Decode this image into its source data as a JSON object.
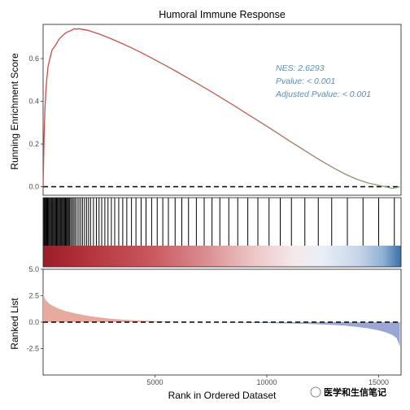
{
  "chart_data": {
    "type": "line",
    "title": "Humoral Immune Response",
    "xlabel": "Rank in Ordered Dataset",
    "xlim": [
      0,
      16000
    ],
    "x_ticks": [
      5000,
      10000,
      15000
    ],
    "x_tick_labels": [
      "5000",
      "10000",
      "15000"
    ],
    "panels": [
      {
        "name": "running-enrichment",
        "ylabel": "Running Enrichment Score",
        "ylim": [
          -0.04,
          0.76
        ],
        "y_ticks": [
          0.0,
          0.2,
          0.4,
          0.6
        ],
        "y_tick_labels": [
          "0.0",
          "0.2",
          "0.4",
          "0.6"
        ],
        "reference_line_y": 0,
        "series": [
          {
            "x": [
              0,
              40,
              80,
              120,
              160,
              220,
              300,
              400,
              500,
              600,
              700,
              800,
              900,
              1000,
              1100,
              1200,
              1300,
              1400,
              1500,
              1600,
              1800,
              2000,
              2500,
              3000,
              3500,
              4000,
              4500,
              5000,
              5500,
              6000,
              6500,
              7000,
              7500,
              8000,
              8500,
              9000,
              9500,
              10000,
              10500,
              11000,
              11500,
              12000,
              12500,
              13000,
              13500,
              14000,
              14500,
              15000,
              15300,
              15600,
              15800,
              15950
            ],
            "y": [
              0.0,
              0.22,
              0.36,
              0.44,
              0.5,
              0.56,
              0.6,
              0.64,
              0.655,
              0.67,
              0.69,
              0.7,
              0.71,
              0.72,
              0.725,
              0.73,
              0.735,
              0.74,
              0.738,
              0.74,
              0.736,
              0.732,
              0.715,
              0.695,
              0.672,
              0.648,
              0.622,
              0.594,
              0.566,
              0.537,
              0.507,
              0.477,
              0.446,
              0.414,
              0.382,
              0.349,
              0.316,
              0.283,
              0.249,
              0.215,
              0.182,
              0.149,
              0.117,
              0.087,
              0.059,
              0.036,
              0.018,
              0.006,
              0.0,
              -0.008,
              -0.004,
              0.0
            ]
          }
        ],
        "annotations": [
          "NES: 2.6293",
          "Pvalue: < 0.001",
          "Adjusted Pvalue: < 0.001"
        ]
      },
      {
        "name": "gene-hits",
        "type": "barcode",
        "hits": [
          30,
          60,
          95,
          130,
          165,
          200,
          240,
          280,
          320,
          360,
          400,
          440,
          480,
          520,
          560,
          600,
          640,
          680,
          720,
          760,
          800,
          840,
          880,
          920,
          960,
          1000,
          1040,
          1080,
          1120,
          1160,
          1200,
          1260,
          1320,
          1380,
          1440,
          1520,
          1600,
          1680,
          1760,
          1850,
          1940,
          2030,
          2120,
          2250,
          2380,
          2500,
          2620,
          2760,
          2900,
          3050,
          3200,
          3380,
          3560,
          3740,
          3950,
          4150,
          4380,
          4600,
          4850,
          5100,
          5350,
          5600,
          5900,
          6200,
          6500,
          6850,
          7200,
          7550,
          7900,
          8300,
          8700,
          9150,
          9600,
          10100,
          10600,
          11100,
          11700,
          12300,
          12900,
          13600,
          14300,
          15000,
          15700
        ]
      },
      {
        "name": "ranked-list",
        "ylabel": "Ranked List",
        "ylim": [
          -5,
          5
        ],
        "y_ticks": [
          -2.5,
          0.0,
          2.5,
          5.0
        ],
        "y_tick_labels": [
          "-2.5",
          "0.0",
          "2.5",
          "5.0"
        ],
        "reference_line_y": 0,
        "series": [
          {
            "x": [
              0,
              100,
              300,
              600,
              1000,
              1500,
              2000,
              2500,
              3000,
              4000,
              5000,
              6000,
              7000,
              8000,
              9000,
              10000,
              11000,
              12000,
              13000,
              13500,
              14000,
              14500,
              15000,
              15300,
              15600,
              15800,
              15950
            ],
            "y": [
              2.7,
              2.1,
              1.7,
              1.35,
              1.05,
              0.8,
              0.6,
              0.45,
              0.33,
              0.18,
              0.09,
              0.03,
              0.0,
              -0.02,
              -0.05,
              -0.08,
              -0.12,
              -0.18,
              -0.27,
              -0.34,
              -0.44,
              -0.58,
              -0.78,
              -0.95,
              -1.2,
              -1.5,
              -2.3
            ]
          }
        ]
      }
    ],
    "colors": {
      "curve_start": "#d0483f",
      "curve_end": "#7fa77a",
      "heat_high": "#9b1c2a",
      "heat_low": "#3b6fa6",
      "stat_text": "#5b8db5",
      "ranked_pos": "#e8a99f",
      "ranked_neg": "#9aa6d6"
    },
    "watermark": "医学和生信笔记"
  }
}
